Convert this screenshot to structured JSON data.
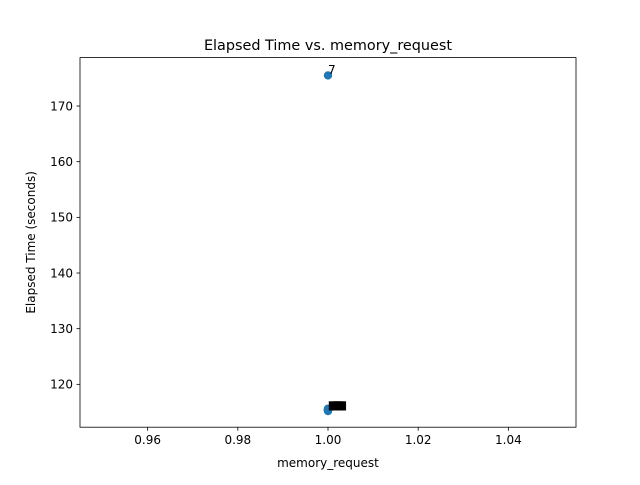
{
  "chart_data": {
    "type": "scatter",
    "title": "Elapsed Time vs. memory_request",
    "xlabel": "memory_request",
    "ylabel": "Elapsed Time (seconds)",
    "xlim": [
      0.945,
      1.055
    ],
    "ylim": [
      112.3,
      178.7
    ],
    "xticks": [
      "0.96",
      "0.98",
      "1.00",
      "1.02",
      "1.04"
    ],
    "yticks": [
      "120",
      "130",
      "140",
      "150",
      "160",
      "170"
    ],
    "grid": false,
    "legend": "none",
    "marker_color": "#1f77b4",
    "points": [
      {
        "x": 1.0,
        "y": 175.5,
        "label": "7"
      },
      {
        "x": 1.0,
        "y": 115.6,
        "label": ""
      },
      {
        "x": 1.0,
        "y": 115.4,
        "label": ""
      },
      {
        "x": 1.0,
        "y": 115.3,
        "label": ""
      },
      {
        "x": 1.0,
        "y": 115.2,
        "label": ""
      },
      {
        "x": 1.0,
        "y": 115.5,
        "label": ""
      },
      {
        "x": 1.0,
        "y": 115.4,
        "label": ""
      },
      {
        "x": 1.0,
        "y": 115.3,
        "label": ""
      },
      {
        "x": 1.0,
        "y": 115.5,
        "label": ""
      },
      {
        "x": 1.0,
        "y": 115.6,
        "label": ""
      }
    ],
    "annotations": [
      {
        "x": 1.0012,
        "y": 116.4,
        "text": "■"
      },
      {
        "x": 1.0022,
        "y": 116.4,
        "text": "■"
      },
      {
        "x": 1.003,
        "y": 116.4,
        "text": "■"
      }
    ]
  }
}
